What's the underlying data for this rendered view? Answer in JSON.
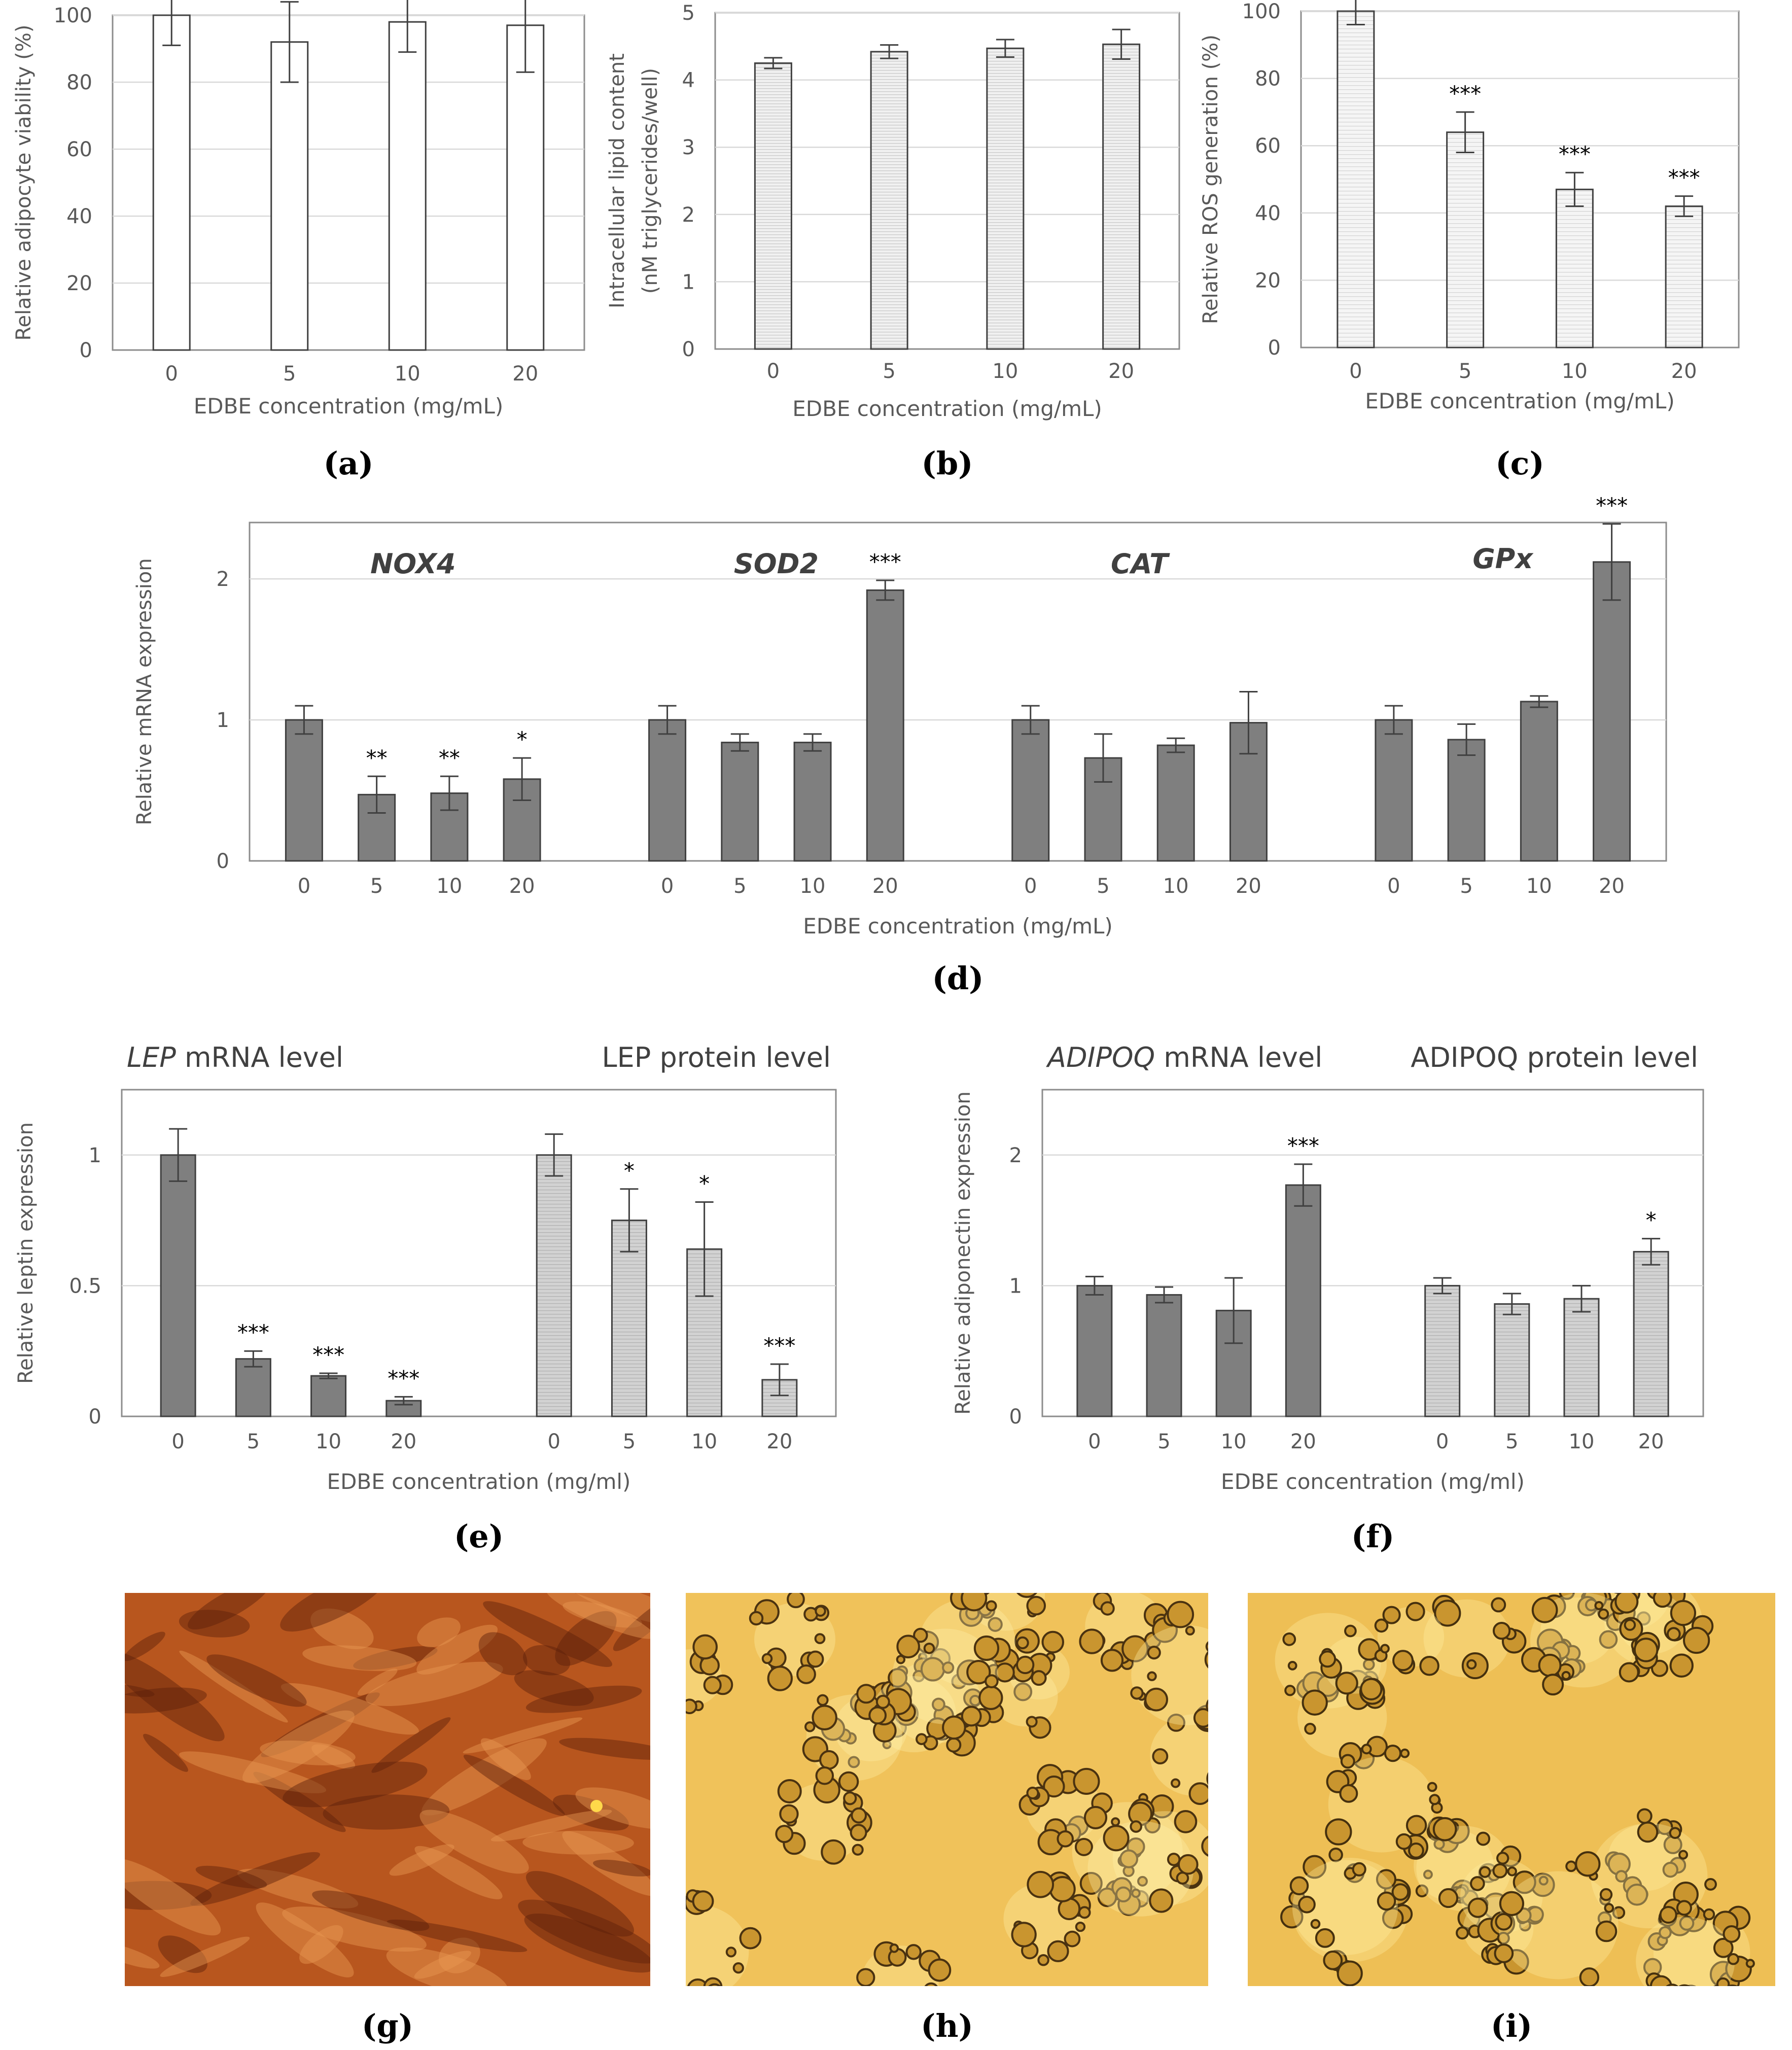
{
  "chart_data": [
    {
      "id": "a",
      "type": "bar",
      "panel_label": "(a)",
      "categories": [
        "0",
        "5",
        "10",
        "20"
      ],
      "values": [
        100,
        92,
        98,
        97
      ],
      "errors": [
        9,
        12,
        9,
        14
      ],
      "stars": [
        "",
        "",
        "",
        ""
      ],
      "ylim": [
        0,
        100
      ],
      "yticks": [
        0,
        20,
        40,
        60,
        80,
        100
      ],
      "ylabel": "Relative adipocyte viability (%)",
      "ylabel2": "",
      "xlabel": "EDBE concentration (mg/mL)",
      "fill": "#ffffff"
    },
    {
      "id": "b",
      "type": "bar",
      "panel_label": "(b)",
      "categories": [
        "0",
        "5",
        "10",
        "20"
      ],
      "values": [
        4.25,
        4.42,
        4.47,
        4.53
      ],
      "errors": [
        0.08,
        0.1,
        0.13,
        0.22
      ],
      "stars": [
        "",
        "",
        "",
        ""
      ],
      "ylim": [
        0,
        5
      ],
      "yticks": [
        0,
        1,
        2,
        3,
        4,
        5
      ],
      "ylabel": "Intracellular lipid content",
      "ylabel2": "(nM triglycerides/well)",
      "xlabel": "EDBE concentration (mg/mL)",
      "fill": "#e6e6e6"
    },
    {
      "id": "c",
      "type": "bar",
      "panel_label": "(c)",
      "categories": [
        "0",
        "5",
        "10",
        "20"
      ],
      "values": [
        100,
        64,
        47,
        42
      ],
      "errors": [
        4,
        6,
        5,
        3
      ],
      "stars": [
        "",
        "***",
        "***",
        "***"
      ],
      "ylim": [
        0,
        100
      ],
      "yticks": [
        0,
        20,
        40,
        60,
        80,
        100
      ],
      "ylabel": "Relative ROS generation (%)",
      "ylabel2": "",
      "xlabel": "EDBE concentration (mg/mL)",
      "fill": "#f2f2f2"
    },
    {
      "id": "d",
      "type": "bar",
      "panel_label": "(d)",
      "categories": [
        "0",
        "5",
        "10",
        "20",
        "0",
        "5",
        "10",
        "20",
        "0",
        "5",
        "10",
        "20",
        "0",
        "5",
        "10",
        "20"
      ],
      "groups": [
        {
          "name": "NOX4",
          "values": [
            1.0,
            0.47,
            0.48,
            0.58
          ],
          "errors": [
            0.1,
            0.13,
            0.12,
            0.15
          ],
          "stars": [
            "",
            "**",
            "**",
            "*"
          ]
        },
        {
          "name": "SOD2",
          "values": [
            1.0,
            0.84,
            0.84,
            1.92
          ],
          "errors": [
            0.1,
            0.06,
            0.06,
            0.07
          ],
          "stars": [
            "",
            "",
            "",
            "***"
          ]
        },
        {
          "name": "CAT",
          "values": [
            1.0,
            0.73,
            0.82,
            0.98
          ],
          "errors": [
            0.1,
            0.17,
            0.05,
            0.22
          ],
          "stars": [
            "",
            "",
            "",
            ""
          ]
        },
        {
          "name": "GPx",
          "values": [
            1.0,
            0.86,
            1.13,
            2.12
          ],
          "errors": [
            0.1,
            0.11,
            0.04,
            0.27
          ],
          "stars": [
            "",
            "",
            "",
            "***"
          ]
        }
      ],
      "ylim": [
        0,
        2.4
      ],
      "yticks": [
        0,
        1,
        2
      ],
      "ylabel": "Relative mRNA expression",
      "xlabel": "EDBE concentration (mg/mL)",
      "fill": "#7f7f7f"
    },
    {
      "id": "e",
      "type": "bar",
      "panel_label": "(e)",
      "categories": [
        "0",
        "5",
        "10",
        "20",
        "0",
        "5",
        "10",
        "20"
      ],
      "groups": [
        {
          "name": "LEP mRNA level",
          "italic": "LEP",
          "rest": " mRNA level",
          "values": [
            1.0,
            0.22,
            0.155,
            0.06
          ],
          "errors": [
            0.1,
            0.03,
            0.01,
            0.015
          ],
          "stars": [
            "",
            "***",
            "***",
            "***"
          ],
          "fill": "#7f7f7f"
        },
        {
          "name": "LEP protein level",
          "italic": "",
          "rest": "LEP protein level",
          "values": [
            1.0,
            0.75,
            0.64,
            0.14
          ],
          "errors": [
            0.08,
            0.12,
            0.18,
            0.06
          ],
          "stars": [
            "",
            "*",
            "*",
            "***"
          ],
          "fill": "#cfcfcf"
        }
      ],
      "ylim": [
        0,
        1.25
      ],
      "yticks": [
        0,
        0.5,
        1
      ],
      "yticklabels": [
        "0",
        "0.5",
        "1"
      ],
      "ylabel": "Relative leptin expression",
      "xlabel": "EDBE concentration (mg/ml)"
    },
    {
      "id": "f",
      "type": "bar",
      "panel_label": "(f)",
      "categories": [
        "0",
        "5",
        "10",
        "20",
        "0",
        "5",
        "10",
        "20"
      ],
      "groups": [
        {
          "name": "ADIPOQ mRNA level",
          "italic": "ADIPOQ",
          "rest": " mRNA level",
          "values": [
            1.0,
            0.93,
            0.81,
            1.77
          ],
          "errors": [
            0.07,
            0.06,
            0.25,
            0.16
          ],
          "stars": [
            "",
            "",
            "",
            "***"
          ],
          "fill": "#7f7f7f"
        },
        {
          "name": "ADIPOQ protein level",
          "italic": "",
          "rest": "ADIPOQ protein level",
          "values": [
            1.0,
            0.86,
            0.9,
            1.26
          ],
          "errors": [
            0.06,
            0.08,
            0.1,
            0.1
          ],
          "stars": [
            "",
            "",
            "",
            "*"
          ],
          "fill": "#cfcfcf"
        }
      ],
      "ylim": [
        0,
        2.5
      ],
      "yticks": [
        0,
        1,
        2
      ],
      "yticklabels": [
        "0",
        "1",
        "2"
      ],
      "ylabel": "Relative adiponectin expression",
      "xlabel": "EDBE concentration (mg/ml)"
    }
  ],
  "micrographs": [
    {
      "id": "g",
      "panel_label": "(g)",
      "base": "#b8561e",
      "dark": "#5a1e08",
      "light": "#e89a52"
    },
    {
      "id": "h",
      "panel_label": "(h)",
      "base": "#f0c25a",
      "dark": "#4a3210",
      "light": "#fff0a8"
    },
    {
      "id": "i",
      "panel_label": "(i)",
      "base": "#eebf55",
      "dark": "#45300e",
      "light": "#ffeea0"
    }
  ]
}
